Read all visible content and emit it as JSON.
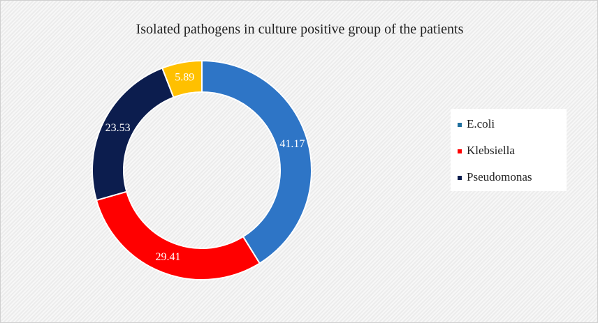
{
  "chart_data": {
    "type": "donut",
    "title": "Isolated pathogens in culture positive group of the patients",
    "categories": [
      "E.coli",
      "Klebsiella",
      "Pseudomonas",
      null
    ],
    "values": [
      41.17,
      29.41,
      23.53,
      5.89
    ],
    "colors": [
      "#2e75c6",
      "#ff0000",
      "#0c1d4e",
      "#ffc000"
    ],
    "legend_colors": [
      "#1f6f9e",
      "#ff0000",
      "#0c1d4e",
      "#ffc000"
    ],
    "legend": "right"
  }
}
